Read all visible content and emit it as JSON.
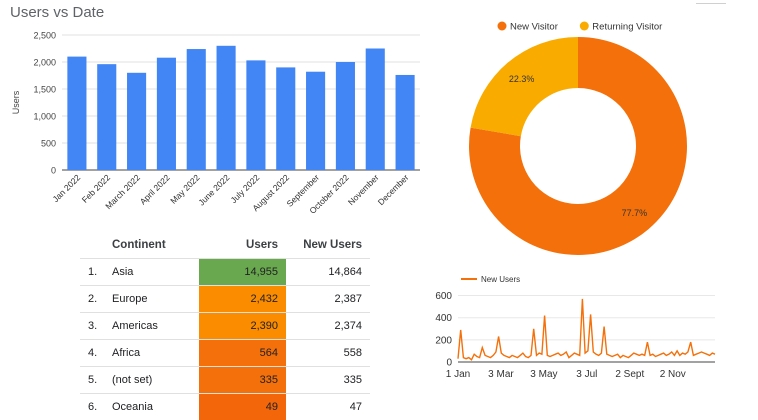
{
  "chart_data": [
    {
      "type": "bar",
      "title": "Users vs Date",
      "ylabel": "Users",
      "xlabel": "",
      "categories": [
        "Jan 2022",
        "Feb 2022",
        "March 2022",
        "April 2022",
        "May 2022",
        "June 2022",
        "July 2022",
        "August 2022",
        "September",
        "October 2022",
        "November",
        "December"
      ],
      "values": [
        2100,
        1960,
        1800,
        2080,
        2240,
        2300,
        2030,
        1900,
        1820,
        2000,
        2250,
        1760
      ],
      "ylim": [
        0,
        2500
      ],
      "yticks": [
        "0",
        "500",
        "1,000",
        "1,500",
        "2,000",
        "2,500"
      ],
      "color": "#4285f4",
      "grid": true
    },
    {
      "type": "pie",
      "donut": true,
      "legend_position": "top",
      "slices": [
        {
          "name": "New Visitor",
          "value": 77.7,
          "label": "77.7%",
          "color": "#f4700a"
        },
        {
          "name": "Returning Visitor",
          "value": 22.3,
          "label": "22.3%",
          "color": "#f9ab00"
        }
      ]
    },
    {
      "type": "table",
      "columns": [
        "Continent",
        "Users",
        "New Users"
      ],
      "rows": [
        {
          "rank": "1.",
          "name": "Asia",
          "users": "14,955",
          "new_users": "14,864",
          "users_bg": "#6aa84f"
        },
        {
          "rank": "2.",
          "name": "Europe",
          "users": "2,432",
          "new_users": "2,387",
          "users_bg": "#fb8c00"
        },
        {
          "rank": "3.",
          "name": "Americas",
          "users": "2,390",
          "new_users": "2,374",
          "users_bg": "#fb8c00"
        },
        {
          "rank": "4.",
          "name": "Africa",
          "users": "564",
          "new_users": "558",
          "users_bg": "#f4700a"
        },
        {
          "rank": "5.",
          "name": "(not set)",
          "users": "335",
          "new_users": "335",
          "users_bg": "#f4700a"
        },
        {
          "rank": "6.",
          "name": "Oceania",
          "users": "49",
          "new_users": "47",
          "users_bg": "#f4660a"
        }
      ]
    },
    {
      "type": "line",
      "legend_position": "top-left",
      "series": [
        {
          "name": "New Users",
          "color": "#f4700a",
          "values": [
            30,
            290,
            40,
            30,
            40,
            20,
            70,
            50,
            40,
            130,
            60,
            50,
            40,
            60,
            90,
            230,
            80,
            60,
            50,
            40,
            60,
            50,
            40,
            60,
            80,
            50,
            40,
            60,
            300,
            60,
            80,
            70,
            420,
            60,
            50,
            60,
            70,
            80,
            60,
            70,
            90,
            40,
            60,
            80,
            70,
            60,
            570,
            80,
            100,
            430,
            90,
            70,
            60,
            80,
            320,
            70,
            60,
            50,
            60,
            70,
            40,
            60,
            50,
            40,
            60,
            80,
            70,
            60,
            70,
            60,
            180,
            60,
            70,
            50,
            60,
            70,
            80,
            60,
            70,
            90,
            60,
            100,
            60,
            80,
            70,
            90,
            180,
            60,
            70,
            80,
            90,
            80,
            70,
            60,
            80,
            70
          ]
        }
      ],
      "x_start": "1 Jan",
      "x_end": "31 Dec",
      "xticks": [
        "1 Jan",
        "3 Mar",
        "3 May",
        "3 Jul",
        "2 Sept",
        "2 Nov"
      ],
      "yticks": [
        "0",
        "200",
        "400",
        "600"
      ],
      "ylim": [
        0,
        650
      ]
    }
  ]
}
